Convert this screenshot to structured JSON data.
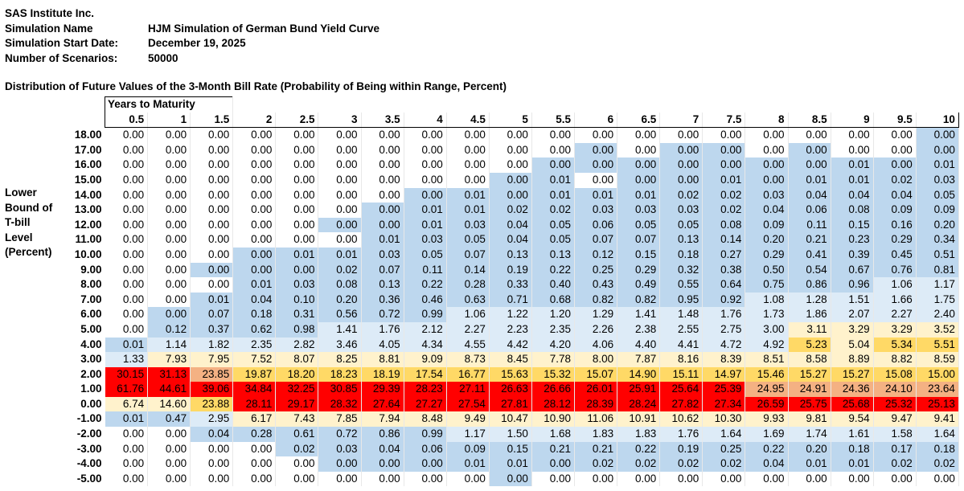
{
  "header": {
    "company": "SAS Institute Inc.",
    "rows": [
      {
        "label": "Simulation Name",
        "value": "HJM Simulation of German Bund Yield Curve"
      },
      {
        "label": "Simulation Start Date:",
        "value": "December 19, 2025"
      },
      {
        "label": "Number of Scenarios:",
        "value": "50000"
      }
    ]
  },
  "subtitle": "Distribution of Future Values of the 3-Month Bill Rate (Probability of Being within Range, Percent)",
  "y_axis_label": [
    "Lower",
    "Bound of",
    "T-bill",
    "Level",
    "(Percent)"
  ],
  "column_group_label": "Years to Maturity",
  "columns": [
    "0.5",
    "1",
    "1.5",
    "2",
    "2.5",
    "3",
    "3.5",
    "4",
    "4.5",
    "5",
    "5.5",
    "6",
    "6.5",
    "7",
    "7.5",
    "8",
    "8.5",
    "9",
    "9.5",
    "10"
  ],
  "colors": {
    "c0": "#ffffff",
    "c1": "#bdd7ee",
    "c2": "#ddebf7",
    "c3": "#fff2cc",
    "c4": "#ffd966",
    "c5": "#f4b183",
    "c6": "#ff0000"
  },
  "rows": [
    {
      "label": "18.00",
      "values": [
        "0.00",
        "0.00",
        "0.00",
        "0.00",
        "0.00",
        "0.00",
        "0.00",
        "0.00",
        "0.00",
        "0.00",
        "0.00",
        "0.00",
        "0.00",
        "0.00",
        "0.00",
        "0.00",
        "0.00",
        "0.00",
        "0.00",
        "0.00"
      ],
      "colors": [
        0,
        0,
        0,
        0,
        0,
        0,
        0,
        0,
        0,
        0,
        0,
        0,
        0,
        0,
        0,
        0,
        0,
        0,
        0,
        1
      ]
    },
    {
      "label": "17.00",
      "values": [
        "0.00",
        "0.00",
        "0.00",
        "0.00",
        "0.00",
        "0.00",
        "0.00",
        "0.00",
        "0.00",
        "0.00",
        "0.00",
        "0.00",
        "0.00",
        "0.00",
        "0.00",
        "0.00",
        "0.00",
        "0.00",
        "0.00",
        "0.00"
      ],
      "colors": [
        0,
        0,
        0,
        0,
        0,
        0,
        0,
        0,
        0,
        0,
        0,
        1,
        0,
        1,
        1,
        0,
        1,
        0,
        0,
        1
      ]
    },
    {
      "label": "16.00",
      "values": [
        "0.00",
        "0.00",
        "0.00",
        "0.00",
        "0.00",
        "0.00",
        "0.00",
        "0.00",
        "0.00",
        "0.00",
        "0.00",
        "0.00",
        "0.00",
        "0.00",
        "0.00",
        "0.00",
        "0.00",
        "0.01",
        "0.00",
        "0.01"
      ],
      "colors": [
        0,
        0,
        0,
        0,
        0,
        0,
        0,
        0,
        0,
        0,
        1,
        1,
        1,
        1,
        1,
        1,
        1,
        1,
        1,
        1
      ]
    },
    {
      "label": "15.00",
      "values": [
        "0.00",
        "0.00",
        "0.00",
        "0.00",
        "0.00",
        "0.00",
        "0.00",
        "0.00",
        "0.00",
        "0.00",
        "0.01",
        "0.00",
        "0.00",
        "0.00",
        "0.01",
        "0.00",
        "0.01",
        "0.01",
        "0.02",
        "0.03"
      ],
      "colors": [
        0,
        0,
        0,
        0,
        0,
        0,
        0,
        0,
        0,
        1,
        1,
        0,
        1,
        1,
        1,
        1,
        1,
        1,
        1,
        1
      ]
    },
    {
      "label": "14.00",
      "values": [
        "0.00",
        "0.00",
        "0.00",
        "0.00",
        "0.00",
        "0.00",
        "0.00",
        "0.00",
        "0.01",
        "0.00",
        "0.01",
        "0.01",
        "0.01",
        "0.02",
        "0.02",
        "0.03",
        "0.04",
        "0.04",
        "0.04",
        "0.05"
      ],
      "colors": [
        0,
        0,
        0,
        0,
        0,
        0,
        0,
        1,
        1,
        1,
        1,
        1,
        1,
        1,
        1,
        1,
        1,
        1,
        1,
        1
      ]
    },
    {
      "label": "13.00",
      "values": [
        "0.00",
        "0.00",
        "0.00",
        "0.00",
        "0.00",
        "0.00",
        "0.00",
        "0.01",
        "0.01",
        "0.02",
        "0.02",
        "0.03",
        "0.03",
        "0.03",
        "0.02",
        "0.04",
        "0.06",
        "0.08",
        "0.09",
        "0.09"
      ],
      "colors": [
        0,
        0,
        0,
        0,
        0,
        0,
        1,
        1,
        1,
        1,
        1,
        1,
        1,
        1,
        1,
        1,
        1,
        1,
        1,
        1
      ]
    },
    {
      "label": "12.00",
      "values": [
        "0.00",
        "0.00",
        "0.00",
        "0.00",
        "0.00",
        "0.00",
        "0.00",
        "0.01",
        "0.03",
        "0.04",
        "0.05",
        "0.06",
        "0.05",
        "0.05",
        "0.08",
        "0.09",
        "0.11",
        "0.15",
        "0.16",
        "0.20"
      ],
      "colors": [
        0,
        0,
        0,
        0,
        0,
        1,
        1,
        1,
        1,
        1,
        1,
        1,
        1,
        1,
        1,
        1,
        1,
        1,
        1,
        1
      ]
    },
    {
      "label": "11.00",
      "values": [
        "0.00",
        "0.00",
        "0.00",
        "0.00",
        "0.00",
        "0.00",
        "0.01",
        "0.03",
        "0.05",
        "0.04",
        "0.05",
        "0.07",
        "0.07",
        "0.13",
        "0.14",
        "0.20",
        "0.21",
        "0.23",
        "0.29",
        "0.34"
      ],
      "colors": [
        0,
        0,
        0,
        0,
        0,
        0,
        1,
        1,
        1,
        1,
        1,
        1,
        1,
        1,
        1,
        1,
        1,
        1,
        1,
        1
      ]
    },
    {
      "label": "10.00",
      "values": [
        "0.00",
        "0.00",
        "0.00",
        "0.00",
        "0.01",
        "0.01",
        "0.03",
        "0.05",
        "0.07",
        "0.13",
        "0.13",
        "0.12",
        "0.15",
        "0.18",
        "0.27",
        "0.29",
        "0.41",
        "0.39",
        "0.45",
        "0.51"
      ],
      "colors": [
        0,
        0,
        0,
        1,
        1,
        1,
        1,
        1,
        1,
        1,
        1,
        1,
        1,
        1,
        1,
        1,
        1,
        1,
        1,
        1
      ]
    },
    {
      "label": "9.00",
      "values": [
        "0.00",
        "0.00",
        "0.00",
        "0.00",
        "0.00",
        "0.02",
        "0.07",
        "0.11",
        "0.14",
        "0.19",
        "0.22",
        "0.25",
        "0.29",
        "0.32",
        "0.38",
        "0.50",
        "0.54",
        "0.67",
        "0.76",
        "0.81"
      ],
      "colors": [
        0,
        0,
        1,
        1,
        1,
        1,
        1,
        1,
        1,
        1,
        1,
        1,
        1,
        1,
        1,
        1,
        1,
        1,
        1,
        1
      ]
    },
    {
      "label": "8.00",
      "values": [
        "0.00",
        "0.00",
        "0.00",
        "0.01",
        "0.03",
        "0.08",
        "0.13",
        "0.22",
        "0.28",
        "0.33",
        "0.40",
        "0.43",
        "0.49",
        "0.55",
        "0.64",
        "0.75",
        "0.86",
        "0.96",
        "1.06",
        "1.17"
      ],
      "colors": [
        0,
        0,
        0,
        1,
        1,
        1,
        1,
        1,
        1,
        1,
        1,
        1,
        1,
        1,
        1,
        1,
        1,
        1,
        2,
        2
      ]
    },
    {
      "label": "7.00",
      "values": [
        "0.00",
        "0.00",
        "0.01",
        "0.04",
        "0.10",
        "0.20",
        "0.36",
        "0.46",
        "0.63",
        "0.71",
        "0.68",
        "0.82",
        "0.82",
        "0.95",
        "0.92",
        "1.08",
        "1.28",
        "1.51",
        "1.66",
        "1.75"
      ],
      "colors": [
        0,
        0,
        1,
        1,
        1,
        1,
        1,
        1,
        1,
        1,
        1,
        1,
        1,
        1,
        1,
        2,
        2,
        2,
        2,
        2
      ]
    },
    {
      "label": "6.00",
      "values": [
        "0.00",
        "0.00",
        "0.07",
        "0.18",
        "0.31",
        "0.56",
        "0.72",
        "0.99",
        "1.06",
        "1.22",
        "1.20",
        "1.29",
        "1.41",
        "1.48",
        "1.76",
        "1.73",
        "1.86",
        "2.07",
        "2.27",
        "2.40"
      ],
      "colors": [
        0,
        1,
        1,
        1,
        1,
        1,
        1,
        1,
        2,
        2,
        2,
        2,
        2,
        2,
        2,
        2,
        2,
        2,
        2,
        2
      ]
    },
    {
      "label": "5.00",
      "values": [
        "0.00",
        "0.12",
        "0.37",
        "0.62",
        "0.98",
        "1.41",
        "1.76",
        "2.12",
        "2.27",
        "2.23",
        "2.35",
        "2.26",
        "2.38",
        "2.55",
        "2.75",
        "3.00",
        "3.11",
        "3.29",
        "3.29",
        "3.52"
      ],
      "colors": [
        0,
        1,
        1,
        1,
        1,
        2,
        2,
        2,
        2,
        2,
        2,
        2,
        2,
        2,
        2,
        2,
        3,
        3,
        3,
        3
      ]
    },
    {
      "label": "4.00",
      "values": [
        "0.01",
        "1.14",
        "1.82",
        "2.35",
        "2.82",
        "3.46",
        "4.05",
        "4.34",
        "4.55",
        "4.42",
        "4.20",
        "4.06",
        "4.40",
        "4.41",
        "4.72",
        "4.92",
        "5.23",
        "5.04",
        "5.34",
        "5.51"
      ],
      "colors": [
        1,
        2,
        2,
        2,
        2,
        2,
        2,
        2,
        2,
        2,
        2,
        2,
        2,
        2,
        2,
        2,
        4,
        3,
        4,
        4
      ]
    },
    {
      "label": "3.00",
      "values": [
        "1.33",
        "7.93",
        "7.95",
        "7.52",
        "8.07",
        "8.25",
        "8.81",
        "9.09",
        "8.73",
        "8.45",
        "7.78",
        "8.00",
        "7.87",
        "8.16",
        "8.39",
        "8.51",
        "8.58",
        "8.89",
        "8.82",
        "8.59"
      ],
      "colors": [
        2,
        3,
        3,
        3,
        3,
        3,
        3,
        3,
        3,
        3,
        3,
        3,
        3,
        3,
        3,
        3,
        3,
        3,
        3,
        3
      ]
    },
    {
      "label": "2.00",
      "values": [
        "30.15",
        "31.13",
        "23.85",
        "19.87",
        "18.20",
        "18.23",
        "18.19",
        "17.54",
        "16.77",
        "15.63",
        "15.32",
        "15.07",
        "14.90",
        "15.11",
        "14.97",
        "15.46",
        "15.27",
        "15.27",
        "15.08",
        "15.00"
      ],
      "colors": [
        6,
        6,
        5,
        4,
        4,
        4,
        4,
        4,
        4,
        4,
        4,
        4,
        4,
        4,
        4,
        4,
        4,
        4,
        4,
        4
      ]
    },
    {
      "label": "1.00",
      "values": [
        "61.76",
        "44.61",
        "39.06",
        "34.84",
        "32.25",
        "30.85",
        "29.39",
        "28.23",
        "27.11",
        "26.63",
        "26.66",
        "26.01",
        "25.91",
        "25.64",
        "25.39",
        "24.95",
        "24.91",
        "24.36",
        "24.10",
        "23.64"
      ],
      "colors": [
        6,
        6,
        6,
        6,
        6,
        6,
        6,
        6,
        6,
        6,
        6,
        6,
        6,
        6,
        6,
        5,
        5,
        5,
        5,
        5
      ]
    },
    {
      "label": "0.00",
      "values": [
        "6.74",
        "14.60",
        "23.88",
        "28.11",
        "29.17",
        "28.32",
        "27.64",
        "27.27",
        "27.54",
        "27.81",
        "28.12",
        "28.39",
        "28.24",
        "27.82",
        "27.34",
        "26.59",
        "25.75",
        "25.68",
        "25.32",
        "25.13"
      ],
      "colors": [
        3,
        3,
        4,
        6,
        6,
        6,
        6,
        6,
        6,
        6,
        6,
        6,
        6,
        6,
        6,
        6,
        6,
        6,
        6,
        6
      ]
    },
    {
      "label": "-1.00",
      "values": [
        "0.01",
        "0.47",
        "2.95",
        "6.17",
        "7.43",
        "7.85",
        "7.94",
        "8.48",
        "9.49",
        "10.47",
        "10.90",
        "11.06",
        "10.91",
        "10.62",
        "10.30",
        "9.93",
        "9.81",
        "9.54",
        "9.47",
        "9.41"
      ],
      "colors": [
        1,
        1,
        2,
        3,
        3,
        3,
        3,
        3,
        3,
        3,
        3,
        3,
        3,
        3,
        3,
        3,
        3,
        3,
        3,
        3
      ]
    },
    {
      "label": "-2.00",
      "values": [
        "0.00",
        "0.00",
        "0.04",
        "0.28",
        "0.61",
        "0.72",
        "0.86",
        "0.99",
        "1.17",
        "1.50",
        "1.68",
        "1.83",
        "1.83",
        "1.76",
        "1.64",
        "1.69",
        "1.74",
        "1.61",
        "1.58",
        "1.64"
      ],
      "colors": [
        0,
        0,
        1,
        1,
        1,
        1,
        1,
        1,
        2,
        2,
        2,
        2,
        2,
        2,
        2,
        2,
        2,
        2,
        2,
        2
      ]
    },
    {
      "label": "-3.00",
      "values": [
        "0.00",
        "0.00",
        "0.00",
        "0.00",
        "0.02",
        "0.03",
        "0.04",
        "0.06",
        "0.09",
        "0.15",
        "0.21",
        "0.21",
        "0.22",
        "0.19",
        "0.25",
        "0.22",
        "0.20",
        "0.18",
        "0.17",
        "0.18"
      ],
      "colors": [
        0,
        0,
        0,
        0,
        1,
        1,
        1,
        1,
        1,
        1,
        1,
        1,
        1,
        1,
        1,
        1,
        1,
        1,
        1,
        1
      ]
    },
    {
      "label": "-4.00",
      "values": [
        "0.00",
        "0.00",
        "0.00",
        "0.00",
        "0.00",
        "0.00",
        "0.00",
        "0.00",
        "0.01",
        "0.01",
        "0.00",
        "0.02",
        "0.02",
        "0.02",
        "0.02",
        "0.04",
        "0.01",
        "0.01",
        "0.02",
        "0.02"
      ],
      "colors": [
        0,
        0,
        0,
        0,
        0,
        1,
        1,
        1,
        1,
        1,
        1,
        1,
        1,
        1,
        1,
        1,
        1,
        1,
        1,
        1
      ]
    },
    {
      "label": "-5.00",
      "values": [
        "0.00",
        "0.00",
        "0.00",
        "0.00",
        "0.00",
        "0.00",
        "0.00",
        "0.00",
        "0.00",
        "0.00",
        "0.00",
        "0.00",
        "0.00",
        "0.00",
        "0.00",
        "0.00",
        "0.00",
        "0.00",
        "0.00",
        "0.00"
      ],
      "colors": [
        0,
        0,
        0,
        0,
        0,
        0,
        0,
        0,
        0,
        1,
        0,
        0,
        0,
        0,
        0,
        0,
        0,
        0,
        0,
        0
      ]
    }
  ]
}
